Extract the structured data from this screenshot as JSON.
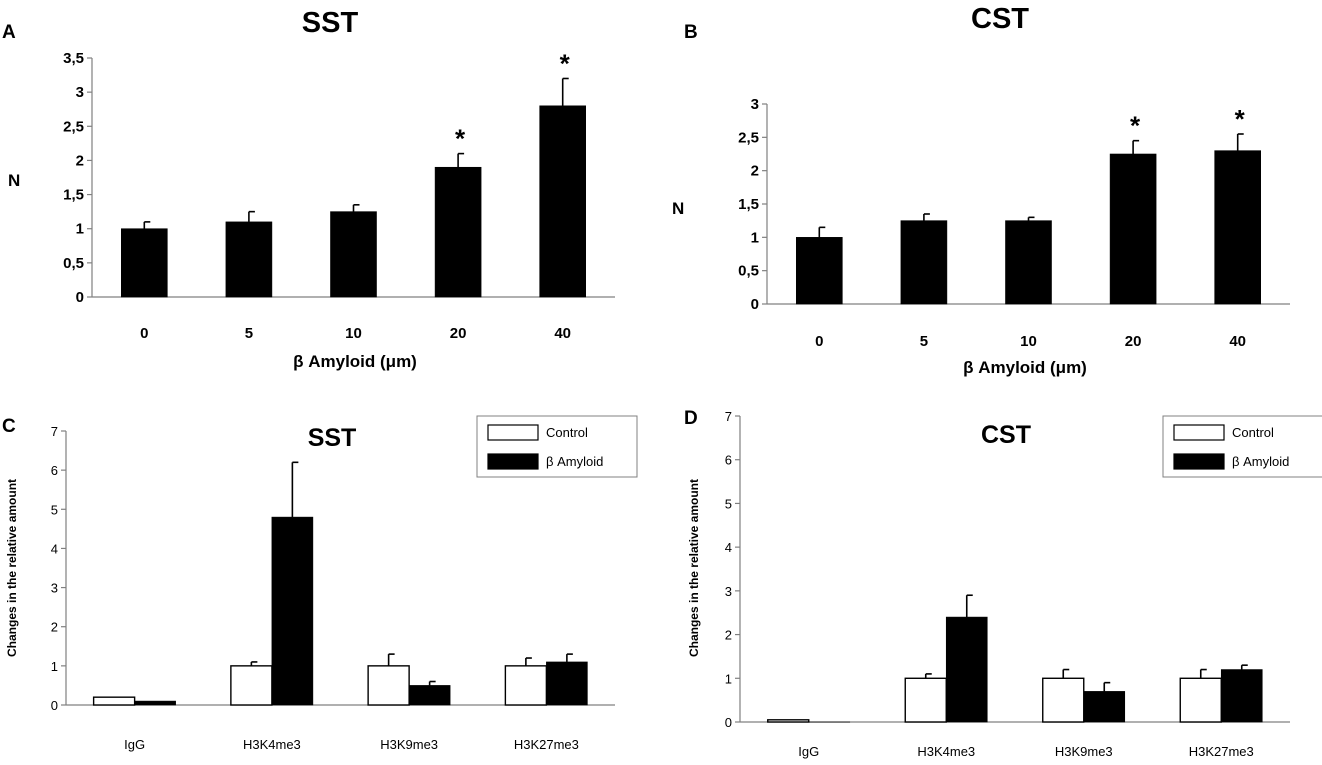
{
  "figure_labels": [
    "A",
    "B",
    "C",
    "D"
  ],
  "chart_data": [
    {
      "panel": "A",
      "type": "bar",
      "title": "SST",
      "ylabel": "N",
      "xlabel": "β Amyloid (μm)",
      "categories": [
        "0",
        "5",
        "10",
        "20",
        "40"
      ],
      "series": [
        {
          "values": [
            1.0,
            1.1,
            1.25,
            1.9,
            2.8
          ],
          "errors": [
            0.1,
            0.15,
            0.1,
            0.2,
            0.4
          ],
          "color": "#000000"
        }
      ],
      "significance": [
        "",
        "",
        "",
        "*",
        "*"
      ],
      "ylim": [
        0,
        3.5
      ],
      "yticks": [
        "0",
        "0,5",
        "1",
        "1,5",
        "2",
        "2,5",
        "3",
        "3,5"
      ],
      "grid": false
    },
    {
      "panel": "B",
      "type": "bar",
      "title": "CST",
      "ylabel": "N",
      "xlabel": "β Amyloid (μm)",
      "categories": [
        "0",
        "5",
        "10",
        "20",
        "40"
      ],
      "series": [
        {
          "values": [
            1.0,
            1.25,
            1.25,
            2.25,
            2.3
          ],
          "errors": [
            0.15,
            0.1,
            0.05,
            0.2,
            0.25
          ],
          "color": "#000000"
        }
      ],
      "significance": [
        "",
        "",
        "",
        "*",
        "*"
      ],
      "ylim": [
        0,
        3
      ],
      "yticks": [
        "0",
        "0,5",
        "1",
        "1,5",
        "2",
        "2,5",
        "3"
      ],
      "grid": false
    },
    {
      "panel": "C",
      "type": "bar",
      "title": "SST",
      "ylabel": "Changes in the relative amount",
      "xlabel": "",
      "categories": [
        "IgG",
        "H3K4me3",
        "H3K9me3",
        "H3K27me3"
      ],
      "series": [
        {
          "name": "Control",
          "values": [
            0.2,
            1.0,
            1.0,
            1.0
          ],
          "errors": [
            0,
            0.1,
            0.3,
            0.2
          ],
          "color": "#ffffff"
        },
        {
          "name": "β Amyloid",
          "values": [
            0.1,
            4.8,
            0.5,
            1.1
          ],
          "errors": [
            0,
            1.4,
            0.1,
            0.2
          ],
          "color": "#000000"
        }
      ],
      "legend": "top-right",
      "ylim": [
        0,
        7
      ],
      "yticks": [
        "0",
        "1",
        "2",
        "3",
        "4",
        "5",
        "6",
        "7"
      ],
      "grid": false
    },
    {
      "panel": "D",
      "type": "bar",
      "title": "CST",
      "ylabel": "Changes in the relative amount",
      "xlabel": "",
      "categories": [
        "IgG",
        "H3K4me3",
        "H3K9me3",
        "H3K27me3"
      ],
      "series": [
        {
          "name": "Control",
          "values": [
            0.05,
            1.0,
            1.0,
            1.0
          ],
          "errors": [
            0,
            0.1,
            0.2,
            0.2
          ],
          "color": "#ffffff"
        },
        {
          "name": "β Amyloid",
          "values": [
            0.0,
            2.4,
            0.7,
            1.2
          ],
          "errors": [
            0,
            0.5,
            0.2,
            0.1
          ],
          "color": "#000000"
        }
      ],
      "legend": "top-right",
      "ylim": [
        0,
        7
      ],
      "yticks": [
        "0",
        "1",
        "2",
        "3",
        "4",
        "5",
        "6",
        "7"
      ],
      "grid": false
    }
  ]
}
